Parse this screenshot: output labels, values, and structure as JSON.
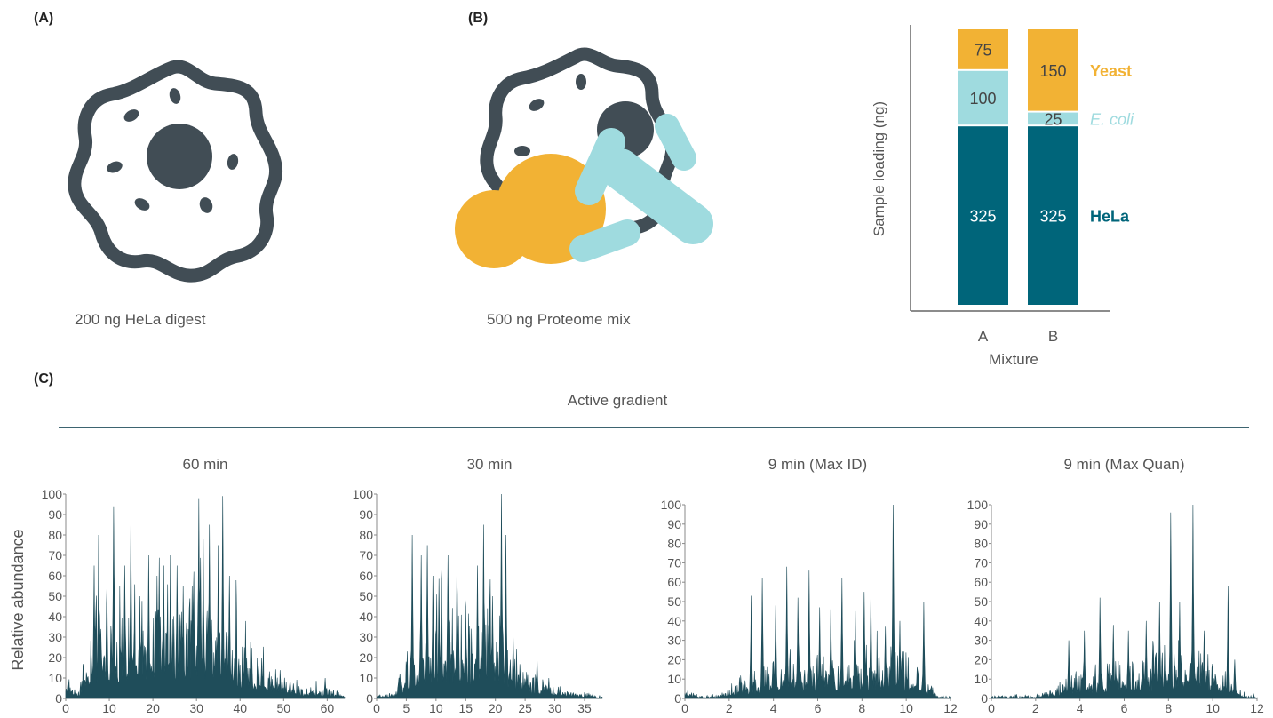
{
  "panels": {
    "a_label": "(A)",
    "b_label": "(B)",
    "c_label": "(C)",
    "a_caption": "200 ng HeLa digest",
    "b_caption": "500 ng Proteome mix",
    "gradient_title": "Active gradient",
    "y_axis_label": "Relative abundance"
  },
  "colors": {
    "hela": "#00657a",
    "ecoli": "#9fdbdf",
    "yeast": "#f2b234",
    "cell": "#414d55",
    "trace": "#1f4d5a"
  },
  "icons": [
    "cell-icon",
    "proteome-mix-icon"
  ],
  "chart_data": [
    {
      "type": "bar",
      "stacked": true,
      "title": "",
      "xlabel": "Mixture",
      "ylabel": "Sample loading (ng)",
      "categories": [
        "A",
        "B"
      ],
      "series": [
        {
          "name": "HeLa",
          "values": [
            325,
            325
          ],
          "color": "#00657a"
        },
        {
          "name": "E. coli",
          "values": [
            100,
            25
          ],
          "color": "#9fdbdf"
        },
        {
          "name": "Yeast",
          "values": [
            75,
            150
          ],
          "color": "#f2b234"
        }
      ],
      "ylim": [
        0,
        500
      ],
      "legend": "right"
    },
    {
      "type": "line",
      "title": "60 min",
      "ylabel": "Relative abundance",
      "xlim": [
        0,
        64
      ],
      "xticks": [
        "0",
        "10",
        "20",
        "30",
        "40",
        "50",
        "60"
      ],
      "ylim": [
        0,
        100
      ],
      "yticks": [
        "0",
        "10",
        "20",
        "30",
        "40",
        "50",
        "60",
        "70",
        "80",
        "90",
        "100"
      ],
      "peaks": [
        [
          0.5,
          8
        ],
        [
          6.5,
          65
        ],
        [
          7.5,
          80
        ],
        [
          9.5,
          55
        ],
        [
          11,
          94
        ],
        [
          13.5,
          65
        ],
        [
          15,
          85
        ],
        [
          17,
          50
        ],
        [
          19,
          70
        ],
        [
          21,
          60
        ],
        [
          22.5,
          65
        ],
        [
          24,
          70
        ],
        [
          25.5,
          65
        ],
        [
          27,
          55
        ],
        [
          29,
          55
        ],
        [
          30.5,
          98
        ],
        [
          31.5,
          78
        ],
        [
          33,
          85
        ],
        [
          35,
          75
        ],
        [
          36,
          99
        ],
        [
          37.5,
          60
        ],
        [
          41,
          25
        ],
        [
          45,
          20
        ],
        [
          59.5,
          10
        ]
      ],
      "profile": [
        [
          0,
          7
        ],
        [
          3,
          4
        ],
        [
          4.5,
          12
        ],
        [
          6,
          28
        ],
        [
          12,
          32
        ],
        [
          20,
          34
        ],
        [
          30,
          35
        ],
        [
          37,
          34
        ],
        [
          40,
          20
        ],
        [
          45,
          12
        ],
        [
          50,
          8
        ],
        [
          55,
          4
        ],
        [
          62,
          3
        ],
        [
          64,
          2
        ]
      ]
    },
    {
      "type": "line",
      "title": "30 min",
      "xlim": [
        0,
        38
      ],
      "xticks": [
        "0",
        "5",
        "10",
        "15",
        "20",
        "25",
        "30",
        "35"
      ],
      "ylim": [
        0,
        100
      ],
      "yticks": [
        "0",
        "10",
        "20",
        "30",
        "40",
        "50",
        "60",
        "70",
        "80",
        "90",
        "100"
      ],
      "peaks": [
        [
          6,
          80
        ],
        [
          7.5,
          70
        ],
        [
          8.5,
          75
        ],
        [
          9.5,
          60
        ],
        [
          10.5,
          50
        ],
        [
          12,
          70
        ],
        [
          13.5,
          60
        ],
        [
          15,
          45
        ],
        [
          17,
          65
        ],
        [
          18,
          85
        ],
        [
          19.5,
          50
        ],
        [
          21,
          100
        ],
        [
          21.8,
          80
        ],
        [
          23,
          30
        ],
        [
          27,
          20
        ],
        [
          29,
          10
        ]
      ],
      "profile": [
        [
          0,
          1
        ],
        [
          3,
          2
        ],
        [
          4.5,
          10
        ],
        [
          6,
          20
        ],
        [
          12,
          28
        ],
        [
          18,
          30
        ],
        [
          21,
          28
        ],
        [
          24,
          12
        ],
        [
          28,
          6
        ],
        [
          32,
          3
        ],
        [
          35,
          2
        ],
        [
          38,
          1
        ]
      ]
    },
    {
      "type": "line",
      "title": "9 min (Max ID)",
      "xlim": [
        0,
        12
      ],
      "xticks": [
        "0",
        "2",
        "4",
        "6",
        "8",
        "10",
        "12"
      ],
      "ylim": [
        0,
        100
      ],
      "yticks": [
        "0",
        "10",
        "20",
        "30",
        "40",
        "50",
        "60",
        "70",
        "80",
        "90",
        "100"
      ],
      "peaks": [
        [
          3,
          53
        ],
        [
          3.5,
          62
        ],
        [
          4.1,
          48
        ],
        [
          4.6,
          68
        ],
        [
          5.1,
          52
        ],
        [
          5.6,
          66
        ],
        [
          6.1,
          47
        ],
        [
          6.6,
          46
        ],
        [
          7.1,
          62
        ],
        [
          7.7,
          45
        ],
        [
          8.1,
          55
        ],
        [
          8.4,
          55
        ],
        [
          9.4,
          100
        ],
        [
          9.7,
          40
        ],
        [
          10.8,
          50
        ]
      ],
      "profile": [
        [
          0,
          2
        ],
        [
          1,
          1
        ],
        [
          2,
          3
        ],
        [
          3,
          8
        ],
        [
          4,
          12
        ],
        [
          6,
          14
        ],
        [
          8,
          15
        ],
        [
          9.5,
          18
        ],
        [
          10.5,
          10
        ],
        [
          11,
          4
        ],
        [
          11.5,
          1
        ],
        [
          12,
          1
        ]
      ]
    },
    {
      "type": "line",
      "title": "9 min (Max Quan)",
      "xlim": [
        0,
        12
      ],
      "xticks": [
        "0",
        "2",
        "4",
        "6",
        "8",
        "10",
        "12"
      ],
      "ylim": [
        0,
        100
      ],
      "yticks": [
        "0",
        "10",
        "20",
        "30",
        "40",
        "50",
        "60",
        "70",
        "80",
        "90",
        "100"
      ],
      "peaks": [
        [
          3.5,
          30
        ],
        [
          4.2,
          35
        ],
        [
          4.9,
          52
        ],
        [
          5.5,
          38
        ],
        [
          6.2,
          35
        ],
        [
          7,
          40
        ],
        [
          7.6,
          50
        ],
        [
          8.1,
          96
        ],
        [
          8.5,
          50
        ],
        [
          9.1,
          100
        ],
        [
          9.6,
          35
        ],
        [
          10.7,
          58
        ],
        [
          11,
          20
        ]
      ],
      "profile": [
        [
          0,
          1
        ],
        [
          2,
          1
        ],
        [
          3,
          5
        ],
        [
          4,
          10
        ],
        [
          6,
          12
        ],
        [
          8,
          14
        ],
        [
          9.5,
          15
        ],
        [
          10.5,
          10
        ],
        [
          11.2,
          4
        ],
        [
          11.6,
          1
        ],
        [
          12,
          1
        ]
      ]
    }
  ]
}
